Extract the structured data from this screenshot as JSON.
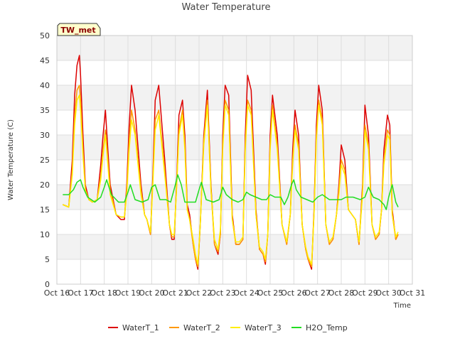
{
  "chart_data": {
    "type": "line",
    "title": "Water Temperature",
    "xlabel": "Time",
    "ylabel": "Water Temperature (C)",
    "ylim": [
      0,
      50
    ],
    "yticks": [
      0,
      5,
      10,
      15,
      20,
      25,
      30,
      35,
      40,
      45,
      50
    ],
    "xlim": [
      16,
      31
    ],
    "xticks": [
      16,
      17,
      18,
      19,
      20,
      21,
      22,
      23,
      24,
      25,
      26,
      27,
      28,
      29,
      30,
      31
    ],
    "xtick_labels": [
      "Oct 16",
      "Oct 17",
      "Oct 18",
      "Oct 19",
      "Oct 20",
      "Oct 21",
      "Oct 22",
      "Oct 23",
      "Oct 24",
      "Oct 25",
      "Oct 26",
      "Oct 27",
      "Oct 28",
      "Oct 29",
      "Oct 30",
      "Oct 31"
    ],
    "grid": true,
    "background_bands": true,
    "badge": "TW_met",
    "legend_position": "bottom-center",
    "series": [
      {
        "name": "WaterT_1",
        "color": "#dd0000",
        "x": [
          16.25,
          16.5,
          16.65,
          16.75,
          16.85,
          16.95,
          17.0,
          17.1,
          17.2,
          17.35,
          17.5,
          17.7,
          17.85,
          17.95,
          18.05,
          18.15,
          18.25,
          18.5,
          18.7,
          18.85,
          18.95,
          19.05,
          19.15,
          19.3,
          19.55,
          19.7,
          19.8,
          19.95,
          20.05,
          20.15,
          20.3,
          20.55,
          20.75,
          20.85,
          20.95,
          21.05,
          21.15,
          21.3,
          21.4,
          21.5,
          21.6,
          21.75,
          21.85,
          21.95,
          22.05,
          22.2,
          22.35,
          22.5,
          22.65,
          22.8,
          22.9,
          23.0,
          23.1,
          23.25,
          23.4,
          23.55,
          23.7,
          23.85,
          23.95,
          24.05,
          24.2,
          24.4,
          24.55,
          24.7,
          24.8,
          24.9,
          25.0,
          25.1,
          25.3,
          25.5,
          25.7,
          25.85,
          25.95,
          26.05,
          26.2,
          26.35,
          26.5,
          26.6,
          26.75,
          26.85,
          26.95,
          27.05,
          27.2,
          27.35,
          27.5,
          27.65,
          27.8,
          27.9,
          28.0,
          28.15,
          28.3,
          28.45,
          28.6,
          28.75,
          28.9,
          29.0,
          29.15,
          29.3,
          29.45,
          29.6,
          29.7,
          29.8,
          29.95,
          30.05,
          30.15,
          30.3,
          30.4
        ],
        "y": [
          16,
          15.5,
          25,
          38,
          44,
          46,
          42,
          30,
          20,
          17,
          16.5,
          17,
          24,
          30,
          35,
          27,
          20,
          14,
          13,
          13,
          20,
          32,
          40,
          35,
          20,
          14,
          13,
          10,
          22,
          37,
          40,
          25,
          12,
          9,
          9,
          20,
          34,
          37,
          30,
          16,
          14,
          8,
          5,
          3,
          12,
          30,
          39,
          20,
          8,
          6,
          10,
          30,
          40,
          38,
          14,
          8,
          8,
          9,
          30,
          42,
          39,
          15,
          7,
          6,
          4,
          10,
          30,
          38,
          30,
          12,
          8,
          14,
          27,
          35,
          30,
          12,
          7,
          5,
          3,
          15,
          32,
          40,
          35,
          12,
          8,
          9,
          14,
          20,
          28,
          25,
          15,
          14,
          13,
          8,
          20,
          36,
          30,
          12,
          9,
          10,
          15,
          27,
          34,
          32,
          15,
          9,
          10
        ]
      },
      {
        "name": "WaterT_2",
        "color": "#ff9900",
        "x": [
          16.25,
          16.5,
          16.65,
          16.75,
          16.85,
          16.95,
          17.0,
          17.1,
          17.2,
          17.35,
          17.5,
          17.7,
          17.85,
          17.95,
          18.05,
          18.15,
          18.25,
          18.5,
          18.7,
          18.85,
          18.95,
          19.05,
          19.15,
          19.3,
          19.55,
          19.7,
          19.8,
          19.95,
          20.05,
          20.15,
          20.3,
          20.55,
          20.75,
          20.85,
          20.95,
          21.05,
          21.15,
          21.3,
          21.4,
          21.5,
          21.6,
          21.75,
          21.85,
          21.95,
          22.05,
          22.2,
          22.35,
          22.5,
          22.65,
          22.8,
          22.9,
          23.0,
          23.1,
          23.25,
          23.4,
          23.55,
          23.7,
          23.85,
          23.95,
          24.05,
          24.2,
          24.4,
          24.55,
          24.7,
          24.8,
          24.9,
          25.0,
          25.1,
          25.3,
          25.5,
          25.7,
          25.85,
          25.95,
          26.05,
          26.2,
          26.35,
          26.5,
          26.6,
          26.75,
          26.85,
          26.95,
          27.05,
          27.2,
          27.35,
          27.5,
          27.65,
          27.8,
          27.9,
          28.0,
          28.15,
          28.3,
          28.45,
          28.6,
          28.75,
          28.9,
          29.0,
          29.15,
          29.3,
          29.45,
          29.6,
          29.7,
          29.8,
          29.95,
          30.05,
          30.15,
          30.3,
          30.4
        ],
        "y": [
          16,
          15.5,
          23,
          34,
          39,
          40,
          37,
          27,
          19,
          17,
          16.5,
          17,
          22,
          27,
          31,
          25,
          19,
          14,
          13.5,
          13.5,
          19,
          29,
          35,
          31,
          19,
          14,
          13,
          10,
          21,
          33,
          35,
          23,
          12,
          9.5,
          9.5,
          19,
          31,
          35,
          28,
          15,
          13,
          8,
          5,
          3.5,
          12,
          29,
          37,
          19,
          8,
          6.5,
          10,
          28,
          37,
          35,
          13,
          8,
          8,
          9,
          28,
          37,
          35,
          14,
          7,
          6,
          4.5,
          10,
          28,
          36,
          28,
          12,
          8,
          14,
          25,
          32,
          28,
          12,
          7,
          5,
          3.5,
          14,
          30,
          37,
          33,
          12,
          8,
          9,
          14,
          19,
          25,
          23,
          15,
          14,
          13,
          8,
          19,
          32,
          28,
          12,
          9,
          10,
          15,
          25,
          31,
          30,
          14,
          9,
          10
        ]
      },
      {
        "name": "WaterT_3",
        "color": "#ffee00",
        "x": [
          16.25,
          16.5,
          16.65,
          16.75,
          16.85,
          16.95,
          17.0,
          17.1,
          17.2,
          17.35,
          17.5,
          17.7,
          17.85,
          17.95,
          18.05,
          18.15,
          18.25,
          18.5,
          18.7,
          18.85,
          18.95,
          19.05,
          19.15,
          19.3,
          19.55,
          19.7,
          19.8,
          19.95,
          20.05,
          20.15,
          20.3,
          20.55,
          20.75,
          20.85,
          20.95,
          21.05,
          21.15,
          21.3,
          21.4,
          21.5,
          21.6,
          21.75,
          21.85,
          21.95,
          22.05,
          22.2,
          22.35,
          22.5,
          22.65,
          22.8,
          22.9,
          23.0,
          23.1,
          23.25,
          23.4,
          23.55,
          23.7,
          23.85,
          23.95,
          24.05,
          24.2,
          24.4,
          24.55,
          24.7,
          24.8,
          24.9,
          25.0,
          25.1,
          25.3,
          25.5,
          25.7,
          25.85,
          25.95,
          26.05,
          26.2,
          26.35,
          26.5,
          26.6,
          26.75,
          26.85,
          26.95,
          27.05,
          27.2,
          27.35,
          27.5,
          27.65,
          27.8,
          27.9,
          28.0,
          28.15,
          28.3,
          28.45,
          28.6,
          28.75,
          28.9,
          29.0,
          29.15,
          29.3,
          29.45,
          29.6,
          29.7,
          29.8,
          29.95,
          30.05,
          30.15,
          30.3,
          30.4
        ],
        "y": [
          16,
          15.5,
          22,
          32,
          37,
          38,
          35,
          26,
          19,
          17,
          16.5,
          17,
          21,
          26,
          30,
          24,
          18,
          14,
          13.5,
          13.5,
          18,
          27,
          33,
          30,
          18,
          14,
          13,
          10.5,
          20,
          31,
          34,
          22,
          12,
          10,
          10,
          19,
          30,
          34,
          27,
          15,
          13,
          9,
          6,
          4,
          12,
          28,
          36,
          19,
          9,
          7,
          11,
          27,
          36,
          34,
          13,
          8.5,
          8.5,
          9.5,
          27,
          36,
          34,
          14,
          7.5,
          6.5,
          5,
          10,
          27,
          35,
          27,
          12,
          8.5,
          14,
          24,
          31,
          27,
          12,
          7.5,
          5.5,
          4,
          14,
          29,
          36,
          32,
          12,
          8.5,
          9.5,
          14,
          18,
          24,
          22,
          15,
          14,
          13,
          8.5,
          18,
          31,
          27,
          12,
          9.5,
          10.5,
          15,
          24,
          30,
          29,
          14,
          9.5,
          10.5
        ]
      },
      {
        "name": "H2O_Temp",
        "color": "#22dd22",
        "x": [
          16.25,
          16.5,
          16.7,
          16.85,
          17.0,
          17.1,
          17.3,
          17.6,
          17.85,
          18.0,
          18.1,
          18.3,
          18.6,
          18.85,
          19.0,
          19.1,
          19.3,
          19.6,
          19.85,
          20.0,
          20.15,
          20.35,
          20.6,
          20.8,
          21.0,
          21.1,
          21.25,
          21.4,
          21.6,
          21.85,
          22.0,
          22.1,
          22.3,
          22.6,
          22.85,
          23.0,
          23.15,
          23.4,
          23.65,
          23.85,
          24.0,
          24.15,
          24.4,
          24.65,
          24.85,
          25.0,
          25.2,
          25.45,
          25.6,
          25.75,
          25.9,
          26.0,
          26.1,
          26.3,
          26.55,
          26.8,
          27.0,
          27.2,
          27.5,
          27.8,
          28.0,
          28.2,
          28.5,
          28.8,
          29.0,
          29.15,
          29.35,
          29.6,
          29.8,
          29.9,
          30.0,
          30.15,
          30.3,
          30.4
        ],
        "y": [
          18,
          18,
          19,
          20.5,
          21,
          19.5,
          17.5,
          16.5,
          17.5,
          19.5,
          21,
          18,
          16.5,
          16.5,
          18.5,
          20,
          17,
          16.5,
          17,
          19.5,
          20,
          17,
          17,
          16.5,
          20,
          22,
          20,
          16.5,
          16.5,
          16.5,
          19,
          20.5,
          17,
          16.5,
          17,
          19.5,
          18,
          17,
          16.5,
          17,
          18.5,
          18,
          17.5,
          17,
          17,
          18,
          17.5,
          17.5,
          16,
          17.5,
          20,
          21,
          19,
          17.5,
          17,
          16.5,
          17.5,
          18,
          17,
          17,
          17,
          17.5,
          17.5,
          17,
          17.5,
          19.5,
          17.5,
          17,
          16,
          15,
          17.5,
          20,
          16.5,
          15.5
        ]
      }
    ]
  }
}
